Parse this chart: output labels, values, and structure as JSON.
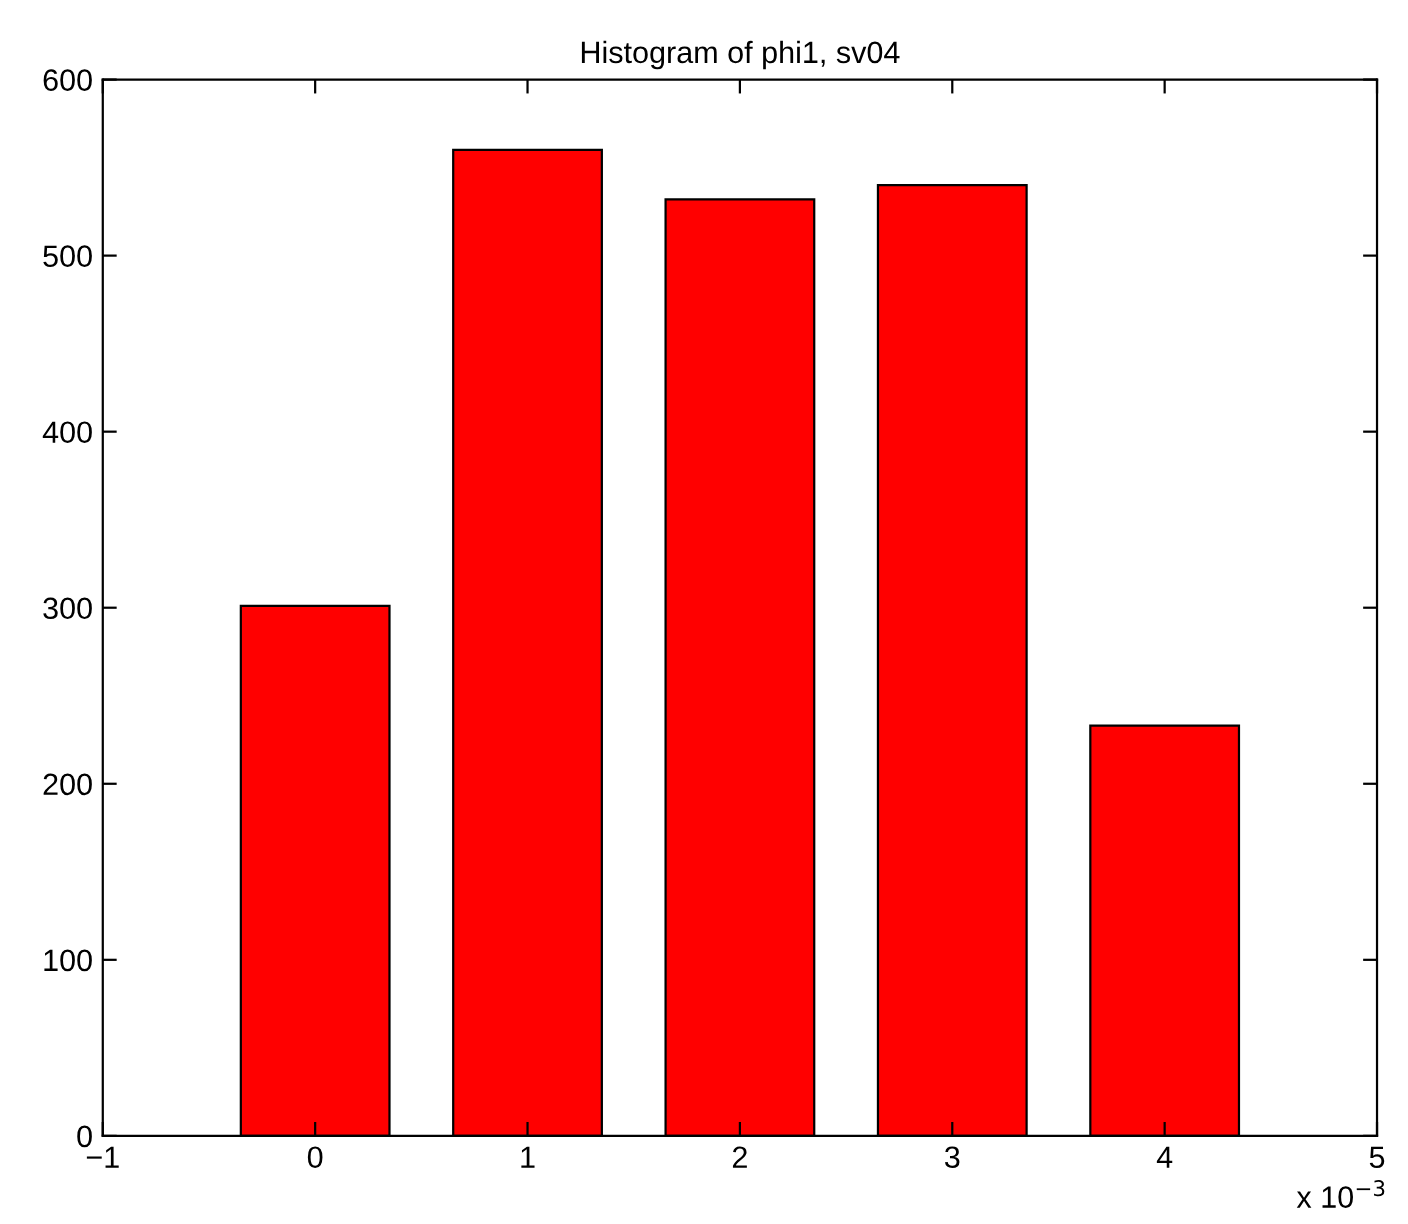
{
  "chart_data": {
    "type": "bar",
    "title": "Histogram of phi1, sv04",
    "x": [
      0,
      1,
      2,
      3,
      4
    ],
    "values": [
      301,
      560,
      532,
      540,
      233
    ],
    "color": "#ff0000",
    "xlim": [
      -1,
      5
    ],
    "xticks": [
      {
        "value": -1,
        "label": "−1"
      },
      0,
      1,
      2,
      3,
      4,
      5
    ],
    "ylim": [
      0,
      600
    ],
    "yticks": [
      0,
      100,
      200,
      300,
      400,
      500,
      600
    ],
    "annotations": [
      "x 10$^{−3}$"
    ],
    "grid": false,
    "legend": false
  }
}
